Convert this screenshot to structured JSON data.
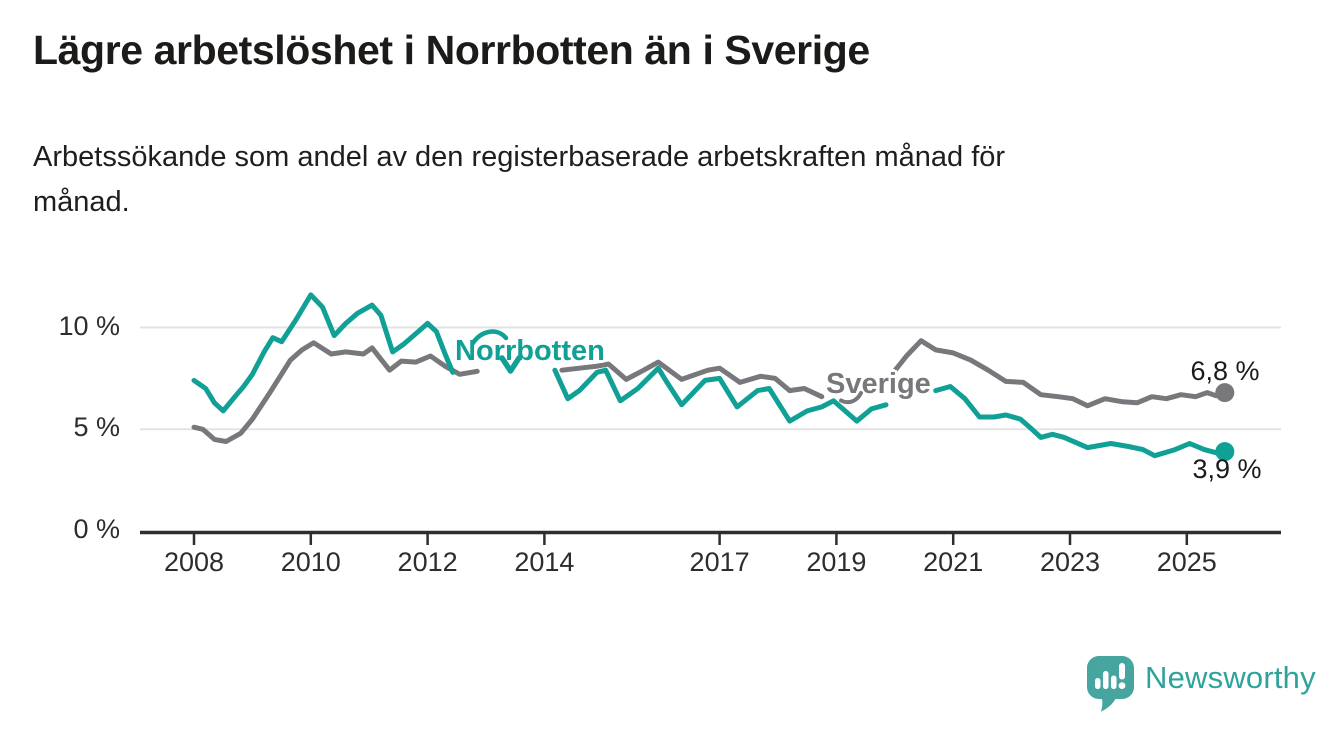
{
  "header": {
    "title": "Lägre arbetslöshet i Norrbotten än i Sverige",
    "subtitle_line1": "Arbetssökande som andel av den registerbaserade arbetskraften månad för",
    "subtitle_line2": "månad."
  },
  "colors": {
    "teal": "#11A096",
    "gray": "#77777C",
    "grid": "#E3E3E3",
    "axis": "#2E2E2E",
    "text": "#1D1D1B",
    "logo_bubble": "#47A59F",
    "logo_text": "#2EA39C"
  },
  "chart_data": {
    "type": "line",
    "title": "Lägre arbetslöshet i Norrbotten än i Sverige",
    "subtitle": "Arbetssökande som andel av den registerbaserade arbetskraften månad för månad.",
    "unit": "%",
    "grid": "horizontal",
    "legend_position": "inline-labels",
    "x_axis": {
      "ticks": [
        2008,
        2010,
        2012,
        2014,
        2017,
        2019,
        2021,
        2023,
        2025
      ],
      "range_years": [
        2007.6,
        2026.6
      ]
    },
    "y_axis": {
      "tick_values": [
        10,
        5,
        0
      ],
      "tick_labels": [
        "10 %",
        "5 %",
        "0 %"
      ],
      "gridline_values": [
        10,
        5
      ],
      "ylim": [
        0,
        11.8
      ]
    },
    "series": [
      {
        "id": "sverige",
        "name": "Sverige",
        "color": "#77777C",
        "end_value": 6.8,
        "end_label": "6,8 %",
        "points": [
          [
            2008.0,
            5.1
          ],
          [
            2008.15,
            5.0
          ],
          [
            2008.35,
            4.5
          ],
          [
            2008.55,
            4.4
          ],
          [
            2008.8,
            4.8
          ],
          [
            2009.0,
            5.5
          ],
          [
            2009.3,
            6.8
          ],
          [
            2009.65,
            8.4
          ],
          [
            2009.85,
            8.9
          ],
          [
            2010.05,
            9.25
          ],
          [
            2010.35,
            8.7
          ],
          [
            2010.6,
            8.8
          ],
          [
            2010.9,
            8.7
          ],
          [
            2011.05,
            9.0
          ],
          [
            2011.35,
            7.9
          ],
          [
            2011.55,
            8.35
          ],
          [
            2011.8,
            8.3
          ],
          [
            2012.05,
            8.6
          ],
          [
            2012.3,
            8.1
          ],
          [
            2012.55,
            7.7
          ],
          [
            2012.85,
            7.85
          ],
          null,
          [
            2014.3,
            7.9
          ],
          [
            2014.6,
            8.0
          ],
          [
            2014.9,
            8.1
          ],
          [
            2015.1,
            8.2
          ],
          [
            2015.4,
            7.45
          ],
          [
            2015.7,
            7.9
          ],
          [
            2015.95,
            8.3
          ],
          [
            2016.35,
            7.45
          ],
          [
            2016.8,
            7.9
          ],
          [
            2017.0,
            8.0
          ],
          [
            2017.35,
            7.3
          ],
          [
            2017.7,
            7.6
          ],
          [
            2017.95,
            7.5
          ],
          [
            2018.2,
            6.9
          ],
          [
            2018.45,
            7.0
          ],
          [
            2018.75,
            6.6
          ],
          null,
          [
            2019.95,
            7.7
          ],
          [
            2020.2,
            8.6
          ],
          [
            2020.45,
            9.35
          ],
          [
            2020.7,
            8.9
          ],
          [
            2021.0,
            8.75
          ],
          [
            2021.3,
            8.4
          ],
          [
            2021.6,
            7.9
          ],
          [
            2021.9,
            7.35
          ],
          [
            2022.2,
            7.3
          ],
          [
            2022.5,
            6.7
          ],
          [
            2022.8,
            6.6
          ],
          [
            2023.05,
            6.5
          ],
          [
            2023.3,
            6.15
          ],
          [
            2023.6,
            6.5
          ],
          [
            2023.9,
            6.35
          ],
          [
            2024.15,
            6.3
          ],
          [
            2024.4,
            6.6
          ],
          [
            2024.65,
            6.5
          ],
          [
            2024.9,
            6.7
          ],
          [
            2025.15,
            6.6
          ],
          [
            2025.35,
            6.8
          ],
          [
            2025.5,
            6.65
          ],
          [
            2025.65,
            6.8
          ]
        ]
      },
      {
        "id": "norrbotten",
        "name": "Norrbotten",
        "color": "#11A096",
        "end_value": 3.9,
        "end_label": "3,9 %",
        "points": [
          [
            2008.0,
            7.4
          ],
          [
            2008.2,
            7.0
          ],
          [
            2008.35,
            6.3
          ],
          [
            2008.5,
            5.9
          ],
          [
            2008.7,
            6.6
          ],
          [
            2008.85,
            7.1
          ],
          [
            2009.0,
            7.7
          ],
          [
            2009.2,
            8.8
          ],
          [
            2009.35,
            9.5
          ],
          [
            2009.5,
            9.3
          ],
          [
            2009.75,
            10.4
          ],
          [
            2010.0,
            11.6
          ],
          [
            2010.2,
            11.0
          ],
          [
            2010.4,
            9.6
          ],
          [
            2010.6,
            10.2
          ],
          [
            2010.8,
            10.7
          ],
          [
            2011.05,
            11.1
          ],
          [
            2011.2,
            10.6
          ],
          [
            2011.4,
            8.8
          ],
          [
            2011.6,
            9.2
          ],
          [
            2011.8,
            9.7
          ],
          [
            2012.0,
            10.2
          ],
          [
            2012.15,
            9.8
          ],
          [
            2012.3,
            8.7
          ],
          [
            2012.43,
            7.8
          ],
          null,
          [
            2014.18,
            7.9
          ],
          [
            2014.4,
            6.5
          ],
          [
            2014.6,
            6.9
          ],
          [
            2014.9,
            7.8
          ],
          [
            2015.05,
            7.9
          ],
          [
            2015.3,
            6.4
          ],
          [
            2015.6,
            7.0
          ],
          [
            2015.95,
            8.0
          ],
          [
            2016.1,
            7.3
          ],
          [
            2016.35,
            6.2
          ],
          [
            2016.75,
            7.4
          ],
          [
            2017.0,
            7.5
          ],
          [
            2017.3,
            6.1
          ],
          [
            2017.65,
            6.9
          ],
          [
            2017.85,
            7.0
          ],
          [
            2018.2,
            5.4
          ],
          [
            2018.5,
            5.9
          ],
          [
            2018.75,
            6.1
          ],
          [
            2018.95,
            6.4
          ],
          [
            2019.35,
            5.4
          ],
          [
            2019.6,
            6.0
          ],
          [
            2019.85,
            6.2
          ],
          null,
          [
            2020.7,
            6.9
          ],
          [
            2020.95,
            7.1
          ],
          [
            2021.2,
            6.5
          ],
          [
            2021.45,
            5.6
          ],
          [
            2021.7,
            5.6
          ],
          [
            2021.9,
            5.7
          ],
          [
            2022.15,
            5.5
          ],
          [
            2022.35,
            5.0
          ],
          [
            2022.5,
            4.6
          ],
          [
            2022.7,
            4.75
          ],
          [
            2022.9,
            4.6
          ],
          [
            2023.3,
            4.1
          ],
          [
            2023.7,
            4.3
          ],
          [
            2024.0,
            4.15
          ],
          [
            2024.25,
            4.0
          ],
          [
            2024.45,
            3.7
          ],
          [
            2024.8,
            4.0
          ],
          [
            2025.05,
            4.3
          ],
          [
            2025.3,
            4.0
          ],
          [
            2025.5,
            3.85
          ],
          [
            2025.65,
            3.9
          ]
        ]
      }
    ]
  },
  "footer": {
    "brand": "Newsworthy"
  }
}
